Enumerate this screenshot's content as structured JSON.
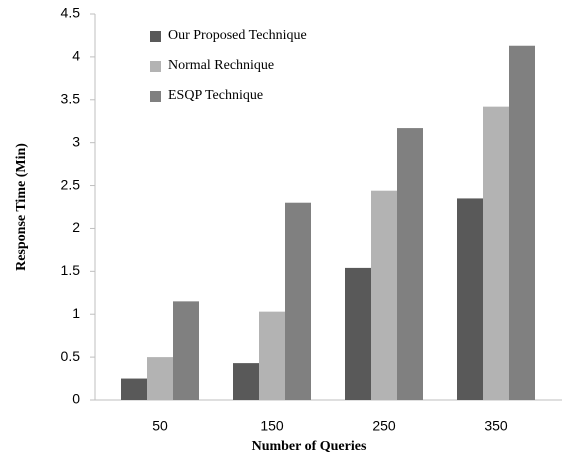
{
  "chart_data": {
    "type": "bar",
    "x_label": "Number of Queries",
    "y_label": "Response Time (Min)",
    "categories": [
      "50",
      "150",
      "250",
      "350"
    ],
    "series": [
      {
        "name": "Our Proposed Technique",
        "color": "#595959",
        "values": [
          0.25,
          0.43,
          1.54,
          2.35
        ]
      },
      {
        "name": "Normal Rechnique",
        "color": "#b3b3b3",
        "values": [
          0.5,
          1.03,
          2.44,
          3.42
        ]
      },
      {
        "name": "ESQP Technique",
        "color": "#808080",
        "values": [
          1.15,
          2.3,
          3.17,
          4.13
        ]
      }
    ],
    "ylim": [
      0,
      4.5
    ],
    "yticks": [
      0,
      0.5,
      1,
      1.5,
      2,
      2.5,
      3,
      3.5,
      4,
      4.5
    ],
    "grid": false,
    "legend": "top-left"
  }
}
